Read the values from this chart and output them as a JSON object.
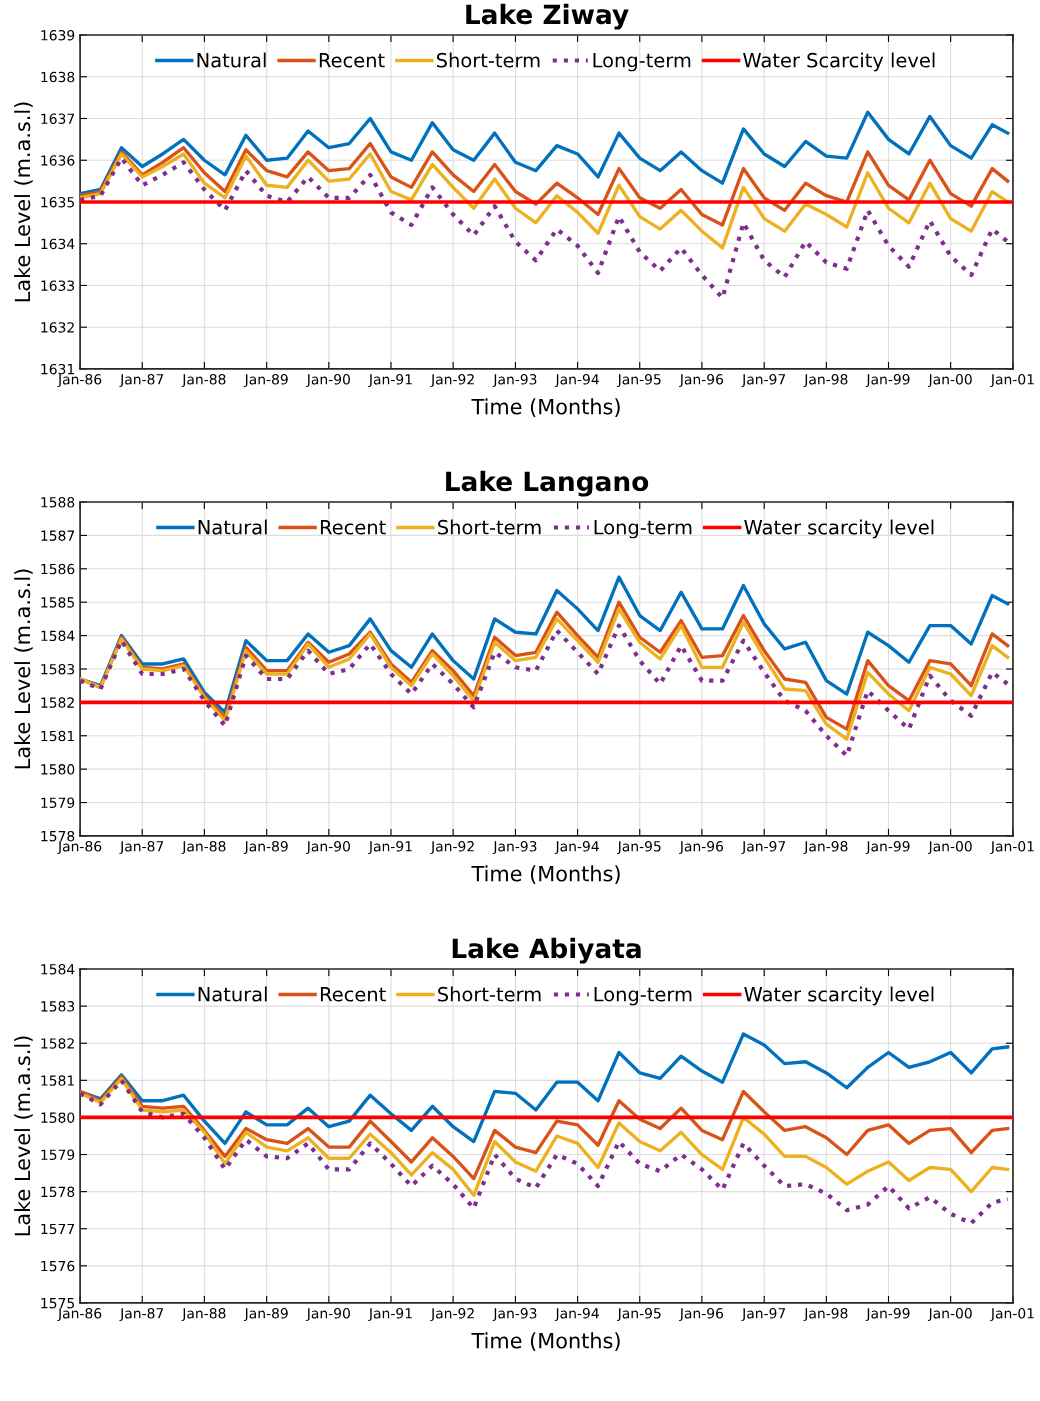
{
  "chart_data": [
    {
      "type": "line",
      "title": "Lake Ziway",
      "xlabel": "Time (Months)",
      "ylabel": "Lake Level (m.a.s.l)",
      "x": [
        "1986-01",
        "1986-05",
        "1986-09",
        "1987-01",
        "1987-05",
        "1987-09",
        "1988-01",
        "1988-05",
        "1988-09",
        "1989-01",
        "1989-05",
        "1989-09",
        "1990-01",
        "1990-05",
        "1990-09",
        "1991-01",
        "1991-05",
        "1991-09",
        "1992-01",
        "1992-05",
        "1992-09",
        "1993-01",
        "1993-05",
        "1993-09",
        "1994-01",
        "1994-05",
        "1994-09",
        "1995-01",
        "1995-05",
        "1995-09",
        "1996-01",
        "1996-05",
        "1996-09",
        "1997-01",
        "1997-05",
        "1997-09",
        "1998-01",
        "1998-05",
        "1998-09",
        "1999-01",
        "1999-05",
        "1999-09",
        "2000-01",
        "2000-05",
        "2000-09",
        "2000-12"
      ],
      "series": [
        {
          "name": "Natural",
          "color": "#0072bd",
          "values": [
            1635.2,
            1635.3,
            1636.3,
            1635.85,
            1636.15,
            1636.5,
            1636.0,
            1635.65,
            1636.6,
            1636.0,
            1636.05,
            1636.7,
            1636.3,
            1636.4,
            1637.0,
            1636.2,
            1636.0,
            1636.9,
            1636.25,
            1636.0,
            1636.65,
            1635.95,
            1635.75,
            1636.35,
            1636.15,
            1635.6,
            1636.65,
            1636.05,
            1635.75,
            1636.2,
            1635.75,
            1635.45,
            1636.75,
            1636.15,
            1635.85,
            1636.45,
            1636.1,
            1636.05,
            1637.15,
            1636.5,
            1636.15,
            1637.05,
            1636.35,
            1636.05,
            1636.85,
            1636.65
          ]
        },
        {
          "name": "Recent",
          "color": "#d95319",
          "values": [
            1635.15,
            1635.25,
            1636.2,
            1635.65,
            1635.95,
            1636.3,
            1635.7,
            1635.25,
            1636.25,
            1635.75,
            1635.6,
            1636.2,
            1635.75,
            1635.8,
            1636.4,
            1635.6,
            1635.35,
            1636.2,
            1635.65,
            1635.25,
            1635.9,
            1635.25,
            1634.95,
            1635.45,
            1635.1,
            1634.7,
            1635.8,
            1635.1,
            1634.85,
            1635.3,
            1634.7,
            1634.45,
            1635.8,
            1635.1,
            1634.8,
            1635.45,
            1635.15,
            1635.0,
            1636.2,
            1635.4,
            1635.05,
            1636.0,
            1635.2,
            1634.9,
            1635.8,
            1635.5
          ]
        },
        {
          "name": "Short-term",
          "color": "#edb120",
          "values": [
            1635.1,
            1635.2,
            1636.15,
            1635.6,
            1635.85,
            1636.15,
            1635.45,
            1635.1,
            1636.1,
            1635.4,
            1635.35,
            1636.0,
            1635.5,
            1635.55,
            1636.15,
            1635.25,
            1635.05,
            1635.9,
            1635.35,
            1634.85,
            1635.55,
            1634.85,
            1634.5,
            1635.15,
            1634.75,
            1634.25,
            1635.4,
            1634.65,
            1634.35,
            1634.8,
            1634.3,
            1633.9,
            1635.35,
            1634.6,
            1634.3,
            1634.95,
            1634.7,
            1634.4,
            1635.7,
            1634.85,
            1634.5,
            1635.45,
            1634.6,
            1634.3,
            1635.25,
            1635.0
          ]
        },
        {
          "name": "Long-term",
          "color": "#7e2f8e",
          "line_style": "dotted",
          "values": [
            1635.05,
            1635.15,
            1636.05,
            1635.4,
            1635.65,
            1635.95,
            1635.3,
            1634.8,
            1635.75,
            1635.15,
            1635.0,
            1635.6,
            1635.1,
            1635.1,
            1635.65,
            1634.75,
            1634.45,
            1635.35,
            1634.7,
            1634.2,
            1634.9,
            1634.05,
            1633.6,
            1634.35,
            1633.95,
            1633.3,
            1634.65,
            1633.8,
            1633.35,
            1633.9,
            1633.25,
            1632.7,
            1634.5,
            1633.6,
            1633.2,
            1634.05,
            1633.55,
            1633.4,
            1634.8,
            1633.95,
            1633.45,
            1634.55,
            1633.7,
            1633.25,
            1634.35,
            1634.05
          ]
        }
      ],
      "ref_lines": [
        {
          "axis": "y",
          "value": 1635,
          "label": "Water Scarcity level",
          "color": "#ff0000"
        }
      ],
      "xlim": [
        "1986-01",
        "2001-01"
      ],
      "xticks": [
        {
          "value": "1986-01",
          "label": "Jan-86"
        },
        {
          "value": "1987-01",
          "label": "Jan-87"
        },
        {
          "value": "1988-01",
          "label": "Jan-88"
        },
        {
          "value": "1989-01",
          "label": "Jan-89"
        },
        {
          "value": "1990-01",
          "label": "Jan-90"
        },
        {
          "value": "1991-01",
          "label": "Jan-91"
        },
        {
          "value": "1992-01",
          "label": "Jan-92"
        },
        {
          "value": "1993-01",
          "label": "Jan-93"
        },
        {
          "value": "1994-01",
          "label": "Jan-94"
        },
        {
          "value": "1995-01",
          "label": "Jan-95"
        },
        {
          "value": "1996-01",
          "label": "Jan-96"
        },
        {
          "value": "1997-01",
          "label": "Jan-97"
        },
        {
          "value": "1998-01",
          "label": "Jan-98"
        },
        {
          "value": "1999-01",
          "label": "Jan-99"
        },
        {
          "value": "2000-01",
          "label": "Jan-00"
        },
        {
          "value": "2001-01",
          "label": "Jan-01"
        }
      ],
      "ylim": [
        1631,
        1639
      ],
      "yticks": [
        1631,
        1632,
        1633,
        1634,
        1635,
        1636,
        1637,
        1638,
        1639
      ],
      "grid": true,
      "legend": "top",
      "line_style": "solid"
    },
    {
      "type": "line",
      "title": "Lake Langano",
      "xlabel": "Time (Months)",
      "ylabel": "Lake Level (m.a.s.l)",
      "x": [
        "1986-01",
        "1986-05",
        "1986-09",
        "1987-01",
        "1987-05",
        "1987-09",
        "1988-01",
        "1988-05",
        "1988-09",
        "1989-01",
        "1989-05",
        "1989-09",
        "1990-01",
        "1990-05",
        "1990-09",
        "1991-01",
        "1991-05",
        "1991-09",
        "1992-01",
        "1992-05",
        "1992-09",
        "1993-01",
        "1993-05",
        "1993-09",
        "1994-01",
        "1994-05",
        "1994-09",
        "1995-01",
        "1995-05",
        "1995-09",
        "1996-01",
        "1996-05",
        "1996-09",
        "1997-01",
        "1997-05",
        "1997-09",
        "1998-01",
        "1998-05",
        "1998-09",
        "1999-01",
        "1999-05",
        "1999-09",
        "2000-01",
        "2000-05",
        "2000-09",
        "2000-12"
      ],
      "series": [
        {
          "name": "Natural",
          "color": "#0072bd",
          "values": [
            1582.7,
            1582.5,
            1584.0,
            1583.15,
            1583.15,
            1583.3,
            1582.3,
            1581.7,
            1583.85,
            1583.25,
            1583.25,
            1584.05,
            1583.5,
            1583.7,
            1584.5,
            1583.55,
            1583.05,
            1584.05,
            1583.25,
            1582.7,
            1584.5,
            1584.1,
            1584.05,
            1585.35,
            1584.8,
            1584.15,
            1585.75,
            1584.6,
            1584.15,
            1585.3,
            1584.2,
            1584.2,
            1585.5,
            1584.35,
            1583.6,
            1583.8,
            1582.65,
            1582.25,
            1584.1,
            1583.7,
            1583.2,
            1584.3,
            1584.3,
            1583.75,
            1585.2,
            1584.95
          ]
        },
        {
          "name": "Recent",
          "color": "#d95319",
          "values": [
            1582.7,
            1582.45,
            1583.95,
            1583.05,
            1583.0,
            1583.15,
            1582.2,
            1581.55,
            1583.65,
            1582.95,
            1582.95,
            1583.8,
            1583.2,
            1583.45,
            1584.1,
            1583.15,
            1582.6,
            1583.55,
            1582.95,
            1582.2,
            1583.95,
            1583.4,
            1583.5,
            1584.7,
            1584.0,
            1583.35,
            1585.0,
            1583.95,
            1583.5,
            1584.45,
            1583.35,
            1583.4,
            1584.6,
            1583.55,
            1582.7,
            1582.6,
            1581.55,
            1581.2,
            1583.25,
            1582.5,
            1582.05,
            1583.25,
            1583.15,
            1582.5,
            1584.05,
            1583.7
          ]
        },
        {
          "name": "Short-term",
          "color": "#edb120",
          "values": [
            1582.7,
            1582.45,
            1583.9,
            1583.0,
            1582.95,
            1583.1,
            1582.15,
            1581.45,
            1583.55,
            1582.85,
            1582.85,
            1583.75,
            1583.05,
            1583.3,
            1584.05,
            1583.05,
            1582.5,
            1583.45,
            1582.8,
            1582.05,
            1583.8,
            1583.25,
            1583.35,
            1584.5,
            1583.85,
            1583.2,
            1584.8,
            1583.8,
            1583.3,
            1584.3,
            1583.05,
            1583.05,
            1584.4,
            1583.35,
            1582.4,
            1582.35,
            1581.35,
            1580.9,
            1582.9,
            1582.25,
            1581.75,
            1583.05,
            1582.85,
            1582.2,
            1583.7,
            1583.35
          ]
        },
        {
          "name": "Long-term",
          "color": "#7e2f8e",
          "line_style": "dotted",
          "values": [
            1582.65,
            1582.4,
            1583.85,
            1582.85,
            1582.85,
            1583.0,
            1582.05,
            1581.3,
            1583.4,
            1582.7,
            1582.7,
            1583.55,
            1582.85,
            1583.0,
            1583.75,
            1582.85,
            1582.25,
            1583.15,
            1582.55,
            1581.85,
            1583.5,
            1583.05,
            1582.95,
            1584.15,
            1583.5,
            1582.85,
            1584.3,
            1583.25,
            1582.55,
            1583.7,
            1582.65,
            1582.65,
            1583.85,
            1582.9,
            1582.05,
            1581.75,
            1581.0,
            1580.4,
            1582.35,
            1581.75,
            1581.2,
            1582.8,
            1582.05,
            1581.6,
            1582.9,
            1582.55
          ]
        }
      ],
      "ref_lines": [
        {
          "axis": "y",
          "value": 1582,
          "label": "Water scarcity level",
          "color": "#ff0000"
        }
      ],
      "xlim": [
        "1986-01",
        "2001-01"
      ],
      "xticks": [
        {
          "value": "1986-01",
          "label": "Jan-86"
        },
        {
          "value": "1987-01",
          "label": "Jan-87"
        },
        {
          "value": "1988-01",
          "label": "Jan-88"
        },
        {
          "value": "1989-01",
          "label": "Jan-89"
        },
        {
          "value": "1990-01",
          "label": "Jan-90"
        },
        {
          "value": "1991-01",
          "label": "Jan-91"
        },
        {
          "value": "1992-01",
          "label": "Jan-92"
        },
        {
          "value": "1993-01",
          "label": "Jan-93"
        },
        {
          "value": "1994-01",
          "label": "Jan-94"
        },
        {
          "value": "1995-01",
          "label": "Jan-95"
        },
        {
          "value": "1996-01",
          "label": "Jan-96"
        },
        {
          "value": "1997-01",
          "label": "Jan-97"
        },
        {
          "value": "1998-01",
          "label": "Jan-98"
        },
        {
          "value": "1999-01",
          "label": "Jan-99"
        },
        {
          "value": "2000-01",
          "label": "Jan-00"
        },
        {
          "value": "2001-01",
          "label": "Jan-01"
        }
      ],
      "ylim": [
        1578,
        1588
      ],
      "yticks": [
        1578,
        1579,
        1580,
        1581,
        1582,
        1583,
        1584,
        1585,
        1586,
        1587,
        1588
      ],
      "grid": true,
      "legend": "top",
      "line_style": "solid"
    },
    {
      "type": "line",
      "title": "Lake Abiyata",
      "xlabel": "Time (Months)",
      "ylabel": "Lake Level (m.a.s.l)",
      "x": [
        "1986-01",
        "1986-05",
        "1986-09",
        "1987-01",
        "1987-05",
        "1987-09",
        "1988-01",
        "1988-05",
        "1988-09",
        "1989-01",
        "1989-05",
        "1989-09",
        "1990-01",
        "1990-05",
        "1990-09",
        "1991-01",
        "1991-05",
        "1991-09",
        "1992-01",
        "1992-05",
        "1992-09",
        "1993-01",
        "1993-05",
        "1993-09",
        "1994-01",
        "1994-05",
        "1994-09",
        "1995-01",
        "1995-05",
        "1995-09",
        "1996-01",
        "1996-05",
        "1996-09",
        "1997-01",
        "1997-05",
        "1997-09",
        "1998-01",
        "1998-05",
        "1998-09",
        "1999-01",
        "1999-05",
        "1999-09",
        "2000-01",
        "2000-05",
        "2000-09",
        "2000-12"
      ],
      "series": [
        {
          "name": "Natural",
          "color": "#0072bd",
          "values": [
            1580.7,
            1580.5,
            1581.15,
            1580.45,
            1580.45,
            1580.6,
            1579.9,
            1579.3,
            1580.15,
            1579.8,
            1579.8,
            1580.25,
            1579.75,
            1579.9,
            1580.6,
            1580.1,
            1579.65,
            1580.3,
            1579.75,
            1579.35,
            1580.7,
            1580.65,
            1580.2,
            1580.95,
            1580.95,
            1580.45,
            1581.75,
            1581.2,
            1581.05,
            1581.65,
            1581.25,
            1580.95,
            1582.25,
            1581.95,
            1581.45,
            1581.5,
            1581.2,
            1580.8,
            1581.35,
            1581.75,
            1581.35,
            1581.5,
            1581.75,
            1581.2,
            1581.85,
            1581.9
          ]
        },
        {
          "name": "Recent",
          "color": "#d95319",
          "values": [
            1580.7,
            1580.45,
            1581.1,
            1580.3,
            1580.25,
            1580.3,
            1579.65,
            1578.95,
            1579.7,
            1579.4,
            1579.3,
            1579.7,
            1579.2,
            1579.2,
            1579.9,
            1579.35,
            1578.8,
            1579.45,
            1578.95,
            1578.35,
            1579.65,
            1579.2,
            1579.05,
            1579.9,
            1579.8,
            1579.25,
            1580.45,
            1579.95,
            1579.7,
            1580.25,
            1579.65,
            1579.4,
            1580.7,
            1580.15,
            1579.65,
            1579.75,
            1579.45,
            1579.0,
            1579.65,
            1579.8,
            1579.3,
            1579.65,
            1579.7,
            1579.05,
            1579.65,
            1579.7
          ]
        },
        {
          "name": "Short-term",
          "color": "#edb120",
          "values": [
            1580.65,
            1580.4,
            1581.05,
            1580.2,
            1580.15,
            1580.2,
            1579.6,
            1578.75,
            1579.6,
            1579.2,
            1579.1,
            1579.45,
            1578.9,
            1578.9,
            1579.55,
            1579.05,
            1578.45,
            1579.05,
            1578.6,
            1577.9,
            1579.35,
            1578.8,
            1578.55,
            1579.5,
            1579.3,
            1578.65,
            1579.85,
            1579.35,
            1579.1,
            1579.6,
            1579.0,
            1578.6,
            1580.0,
            1579.55,
            1578.95,
            1578.95,
            1578.65,
            1578.2,
            1578.55,
            1578.8,
            1578.3,
            1578.65,
            1578.6,
            1578.0,
            1578.65,
            1578.6
          ]
        },
        {
          "name": "Long-term",
          "color": "#7e2f8e",
          "line_style": "dotted",
          "values": [
            1580.65,
            1580.35,
            1581.0,
            1580.15,
            1580.0,
            1580.1,
            1579.45,
            1578.6,
            1579.4,
            1578.95,
            1578.9,
            1579.3,
            1578.6,
            1578.6,
            1579.3,
            1578.75,
            1578.15,
            1578.7,
            1578.2,
            1577.55,
            1579.0,
            1578.35,
            1578.1,
            1579.0,
            1578.75,
            1578.15,
            1579.35,
            1578.75,
            1578.55,
            1579.0,
            1578.6,
            1578.05,
            1579.3,
            1578.7,
            1578.15,
            1578.2,
            1577.95,
            1577.5,
            1577.65,
            1578.15,
            1577.55,
            1577.85,
            1577.4,
            1577.15,
            1577.7,
            1577.8
          ]
        }
      ],
      "ref_lines": [
        {
          "axis": "y",
          "value": 1580,
          "label": "Water scarcity level",
          "color": "#ff0000"
        }
      ],
      "xlim": [
        "1986-01",
        "2001-01"
      ],
      "xticks": [
        {
          "value": "1986-01",
          "label": "Jan-86"
        },
        {
          "value": "1987-01",
          "label": "Jan-87"
        },
        {
          "value": "1988-01",
          "label": "Jan-88"
        },
        {
          "value": "1989-01",
          "label": "Jan-89"
        },
        {
          "value": "1990-01",
          "label": "Jan-90"
        },
        {
          "value": "1991-01",
          "label": "Jan-91"
        },
        {
          "value": "1992-01",
          "label": "Jan-92"
        },
        {
          "value": "1993-01",
          "label": "Jan-93"
        },
        {
          "value": "1994-01",
          "label": "Jan-94"
        },
        {
          "value": "1995-01",
          "label": "Jan-95"
        },
        {
          "value": "1996-01",
          "label": "Jan-96"
        },
        {
          "value": "1997-01",
          "label": "Jan-97"
        },
        {
          "value": "1998-01",
          "label": "Jan-98"
        },
        {
          "value": "1999-01",
          "label": "Jan-99"
        },
        {
          "value": "2000-01",
          "label": "Jan-00"
        },
        {
          "value": "2001-01",
          "label": "Jan-01"
        }
      ],
      "ylim": [
        1575,
        1584
      ],
      "yticks": [
        1575,
        1576,
        1577,
        1578,
        1579,
        1580,
        1581,
        1582,
        1583,
        1584
      ],
      "grid": true,
      "legend": "top",
      "line_style": "solid"
    }
  ]
}
